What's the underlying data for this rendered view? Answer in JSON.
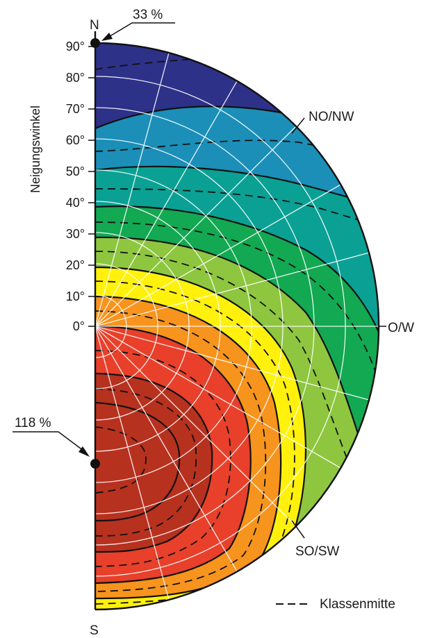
{
  "diagram": {
    "compass": {
      "north": "N",
      "south": "S",
      "east": "O/W"
    },
    "axis_title": "Neigungswinkel",
    "tick_labels": [
      "90°",
      "80°",
      "70°",
      "60°",
      "50°",
      "40°",
      "30°",
      "20°",
      "10°",
      "0°"
    ],
    "annotations": {
      "top_value": "33 %",
      "bottom_value": "118 %",
      "ne_label": "NO/NW",
      "se_label": "SO/SW"
    },
    "legend": {
      "dashed_label": "Klassenmitte"
    },
    "colors": {
      "band_1": "#2e3188",
      "band_2": "#1b8fb8",
      "band_3": "#0aa194",
      "band_4": "#13a852",
      "band_5": "#8ec63f",
      "band_6": "#fff10c",
      "band_7": "#f7941d",
      "band_8": "#e8402a",
      "band_9": "#b7311f"
    }
  }
}
